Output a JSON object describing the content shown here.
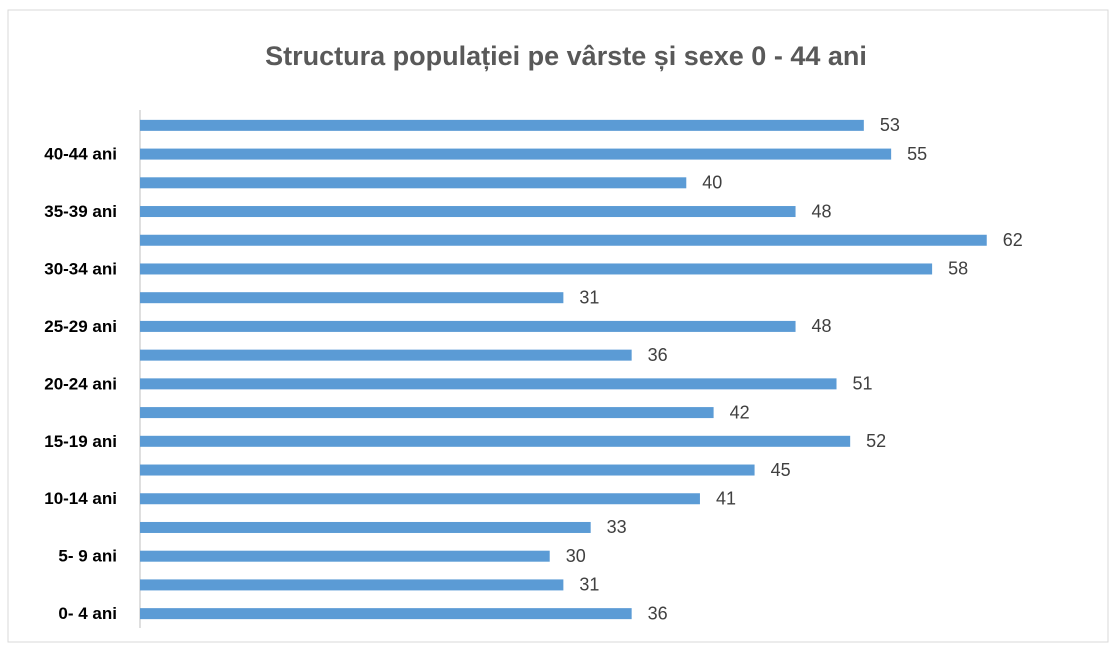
{
  "chart_data": {
    "type": "bar",
    "orientation": "horizontal",
    "title": "Structura populației pe vârste și sexe 0 - 44 ani",
    "categories": [
      null,
      "40-44 ani",
      null,
      "35-39 ani",
      null,
      "30-34 ani",
      null,
      "25-29 ani",
      null,
      "20-24 ani",
      null,
      "15-19 ani",
      null,
      "10-14 ani",
      null,
      "5- 9 ani",
      null,
      "0- 4 ani"
    ],
    "values": [
      53,
      55,
      40,
      48,
      62,
      58,
      31,
      48,
      36,
      51,
      42,
      52,
      45,
      41,
      33,
      30,
      31,
      36
    ],
    "color": "#5b9bd5",
    "xlim": [
      0,
      70
    ]
  }
}
